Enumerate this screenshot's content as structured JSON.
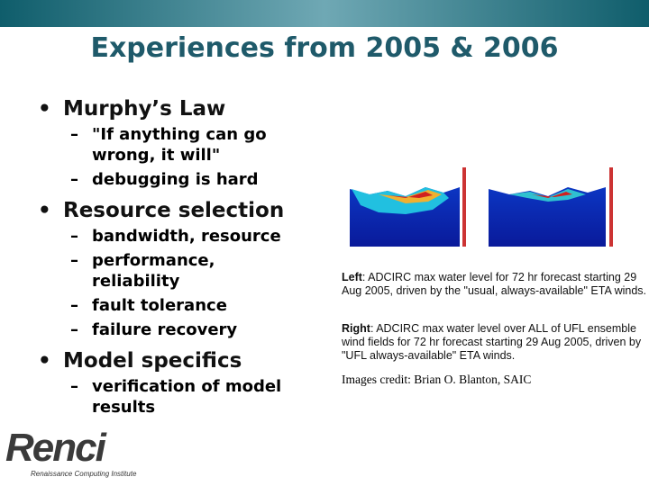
{
  "title": "Experiences from 2005 & 2006",
  "bullets": [
    {
      "text": "Murphy’s Law",
      "subs": [
        "\"If anything can go wrong, it will\"",
        "debugging is hard"
      ]
    },
    {
      "text": "Resource selection",
      "subs": [
        "bandwidth, resource",
        "performance, reliability",
        "fault tolerance",
        "failure recovery"
      ]
    },
    {
      "text": "Model specifics",
      "subs": [
        "verification of model results"
      ]
    }
  ],
  "captions": [
    {
      "label": "Left",
      "text": ": ADCIRC max water level for 72 hr forecast starting 29 Aug 2005, driven by the \"usual, always-available\" ETA winds."
    },
    {
      "label": "Right",
      "text": ": ADCIRC max water level over ALL of UFL ensemble wind fields for 72 hr forecast starting 29 Aug 2005, driven by \"UFL always-available\" ETA winds."
    }
  ],
  "credit": "Images credit: Brian O. Blanton, SAIC",
  "logo": {
    "name": "Renci",
    "subtitle": "Renaissance Computing Institute"
  }
}
